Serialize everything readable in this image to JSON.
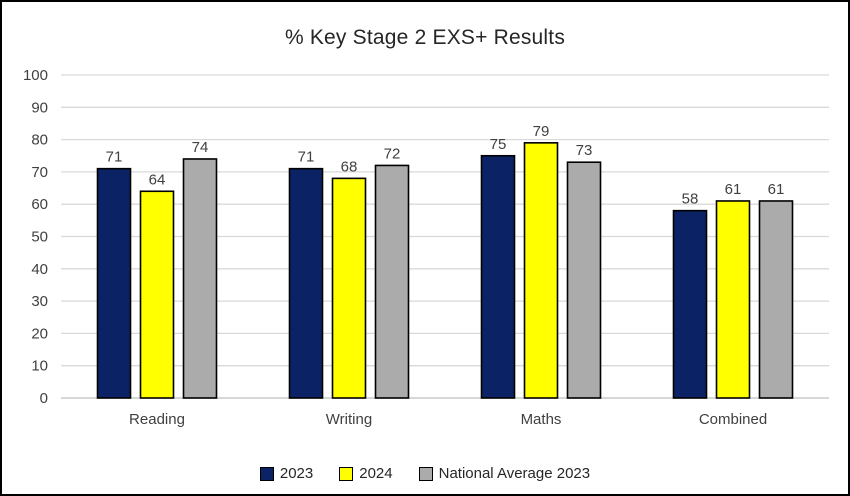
{
  "chart_data": {
    "type": "bar",
    "title": "% Key Stage 2 EXS+ Results",
    "categories": [
      "Reading",
      "Writing",
      "Maths",
      "Combined"
    ],
    "series": [
      {
        "name": "2023",
        "color": "#0B2265",
        "values": [
          71,
          71,
          75,
          58
        ]
      },
      {
        "name": "2024",
        "color": "#FFFF00",
        "values": [
          64,
          68,
          79,
          61
        ]
      },
      {
        "name": "National Average 2023",
        "color": "#ABABAB",
        "values": [
          74,
          72,
          73,
          61
        ]
      }
    ],
    "ylim": [
      0,
      100
    ],
    "ytick_step": 10,
    "ytick_labels": [
      "0",
      "10",
      "20",
      "30",
      "40",
      "50",
      "60",
      "70",
      "80",
      "90",
      "100"
    ],
    "grid": true,
    "legend_position": "bottom",
    "data_labels": true,
    "colors": {
      "bar_border": "#000000",
      "gridline": "#D9D9D9",
      "axis_line": "#BFBFBF",
      "tick_label": "#404040",
      "data_label": "#404040",
      "title": "#262626",
      "frame_border": "#000000",
      "background": "#FFFFFF"
    }
  }
}
